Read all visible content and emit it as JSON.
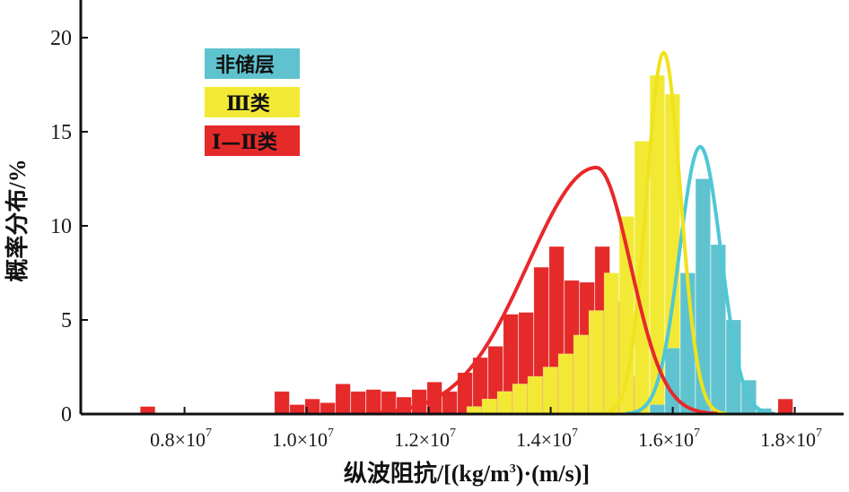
{
  "chart_data": {
    "type": "bar",
    "xlabel_main": "纵波阻抗/[(kg/m",
    "xlabel_sup": "3",
    "xlabel_tail": ")·(m/s)]",
    "ylabel": "概率分布/%",
    "xlim": [
      6300000.0,
      18800000.0
    ],
    "ylim": [
      0,
      22
    ],
    "yticks": [
      0,
      5,
      10,
      15,
      20
    ],
    "xticks": [
      {
        "value": 8000000.0,
        "mantissa": "0.8×10",
        "exp": "7"
      },
      {
        "value": 10000000.0,
        "mantissa": "1.0×10",
        "exp": "7"
      },
      {
        "value": 12000000.0,
        "mantissa": "1.2×10",
        "exp": "7"
      },
      {
        "value": 14000000.0,
        "mantissa": "1.4×10",
        "exp": "7"
      },
      {
        "value": 16000000.0,
        "mantissa": "1.6×10",
        "exp": "7"
      },
      {
        "value": 18000000.0,
        "mantissa": "1.8×10",
        "exp": "7"
      }
    ],
    "legend_position": "upper-left",
    "series": [
      {
        "name": "非储层",
        "color": "#5fc3cf",
        "curve_color": "#4fc7d6",
        "bin_width": 250000.0,
        "bins": [
          {
            "x": 15750000.0,
            "y": 0.5
          },
          {
            "x": 16000000.0,
            "y": 3.5
          },
          {
            "x": 16250000.0,
            "y": 7.5
          },
          {
            "x": 16500000.0,
            "y": 12.5
          },
          {
            "x": 16750000.0,
            "y": 9.0
          },
          {
            "x": 17000000.0,
            "y": 5.0
          },
          {
            "x": 17250000.0,
            "y": 1.8
          },
          {
            "x": 17500000.0,
            "y": 0.3
          }
        ],
        "fit": {
          "mean": 16450000.0,
          "sd": 340000.0,
          "peak": 14.2
        }
      },
      {
        "name": "Ⅲ类",
        "color": "#f2e935",
        "curve_color": "#f0e21c",
        "bin_width": 250000.0,
        "bins": [
          {
            "x": 12750000.0,
            "y": 0.4
          },
          {
            "x": 13000000.0,
            "y": 0.8
          },
          {
            "x": 13250000.0,
            "y": 1.2
          },
          {
            "x": 13500000.0,
            "y": 1.6
          },
          {
            "x": 13750000.0,
            "y": 2.0
          },
          {
            "x": 14000000.0,
            "y": 2.5
          },
          {
            "x": 14250000.0,
            "y": 3.2
          },
          {
            "x": 14500000.0,
            "y": 4.2
          },
          {
            "x": 14750000.0,
            "y": 5.5
          },
          {
            "x": 15000000.0,
            "y": 7.5
          },
          {
            "x": 15250000.0,
            "y": 10.5
          },
          {
            "x": 15500000.0,
            "y": 14.5
          },
          {
            "x": 15750000.0,
            "y": 18.0
          },
          {
            "x": 16000000.0,
            "y": 17.0
          },
          {
            "x": 16250000.0,
            "y": 2.5
          }
        ],
        "fit": {
          "mean": 15850000.0,
          "sd": 280000.0,
          "peak": 19.2
        }
      },
      {
        "name": "Ⅰ—Ⅱ类",
        "color": "#e52a2a",
        "curve_color": "#e8282a",
        "bin_width": 250000.0,
        "bins": [
          {
            "x": 7400000.0,
            "y": 0.4
          },
          {
            "x": 9600000.0,
            "y": 1.2
          },
          {
            "x": 9850000.0,
            "y": 0.5
          },
          {
            "x": 10100000.0,
            "y": 0.8
          },
          {
            "x": 10350000.0,
            "y": 0.6
          },
          {
            "x": 10600000.0,
            "y": 1.6
          },
          {
            "x": 10850000.0,
            "y": 1.2
          },
          {
            "x": 11100000.0,
            "y": 1.3
          },
          {
            "x": 11350000.0,
            "y": 1.2
          },
          {
            "x": 11600000.0,
            "y": 0.9
          },
          {
            "x": 11850000.0,
            "y": 1.3
          },
          {
            "x": 12100000.0,
            "y": 1.7
          },
          {
            "x": 12350000.0,
            "y": 1.2
          },
          {
            "x": 12600000.0,
            "y": 2.2
          },
          {
            "x": 12850000.0,
            "y": 3.0
          },
          {
            "x": 13100000.0,
            "y": 3.6
          },
          {
            "x": 13350000.0,
            "y": 5.3
          },
          {
            "x": 13600000.0,
            "y": 5.4
          },
          {
            "x": 13850000.0,
            "y": 7.8
          },
          {
            "x": 14100000.0,
            "y": 8.9
          },
          {
            "x": 14350000.0,
            "y": 7.1
          },
          {
            "x": 14600000.0,
            "y": 7.0
          },
          {
            "x": 14850000.0,
            "y": 8.9
          },
          {
            "x": 15100000.0,
            "y": 6.0
          },
          {
            "x": 15350000.0,
            "y": 2.0
          },
          {
            "x": 17850000.0,
            "y": 0.8
          }
        ],
        "fit": {
          "mean": 14750000.0,
          "sd": 900000.0,
          "peak": 13.1,
          "skew": true
        }
      }
    ]
  }
}
